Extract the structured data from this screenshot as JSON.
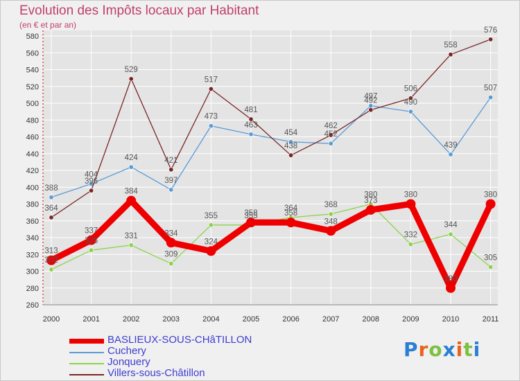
{
  "chart_data": {
    "type": "line",
    "title": "Evolution des Impôts locaux par Habitant",
    "subtitle": "(en € et par an)",
    "categories": [
      "2000",
      "2001",
      "2002",
      "2003",
      "2004",
      "2005",
      "2006",
      "2007",
      "2008",
      "2009",
      "2010",
      "2011"
    ],
    "ylim": [
      260,
      580
    ],
    "yticks": [
      260,
      280,
      300,
      320,
      340,
      360,
      380,
      400,
      420,
      440,
      460,
      480,
      500,
      520,
      540,
      560,
      580
    ],
    "series": [
      {
        "name": "BASLIEUX-SOUS-CHâTILLON",
        "color": "#ee0000",
        "values": [
          313,
          337,
          384,
          334,
          324,
          358,
          358,
          348,
          373,
          380,
          280,
          380
        ],
        "labels": [
          "313",
          "337",
          "384",
          "334",
          "324",
          "358",
          "358",
          "348",
          "373",
          "380",
          "280",
          "380"
        ]
      },
      {
        "name": "Cuchery",
        "color": "#5a9bd5",
        "values": [
          388,
          404,
          424,
          397,
          473,
          463,
          454,
          452,
          497,
          490,
          439,
          507
        ],
        "labels": [
          "388",
          "404",
          "424",
          "397",
          "473",
          "463",
          "454",
          "452",
          "497",
          "490",
          "439",
          "507"
        ]
      },
      {
        "name": "Jonquery",
        "color": "#8cd24a",
        "values": [
          302,
          325,
          331,
          309,
          355,
          355,
          364,
          368,
          380,
          332,
          344,
          305
        ],
        "labels": [
          "302",
          "325",
          "331",
          "309",
          "355",
          "355",
          "364",
          "368",
          "380",
          "332",
          "344",
          "305"
        ]
      },
      {
        "name": "Villers-sous-Châtillon",
        "color": "#7a2525",
        "values": [
          364,
          396,
          529,
          421,
          517,
          481,
          438,
          462,
          492,
          506,
          558,
          576
        ],
        "labels": [
          "364",
          "396",
          "529",
          "421",
          "517",
          "481",
          "438",
          "462",
          "492",
          "506",
          "558",
          "576"
        ]
      }
    ]
  },
  "logo_text": "Proxiti",
  "colors": {
    "title": "#c0406a",
    "legend_text": "#3d3dd1",
    "axis": "#cc0000",
    "grid": "#ffffff",
    "label": "#555555"
  }
}
